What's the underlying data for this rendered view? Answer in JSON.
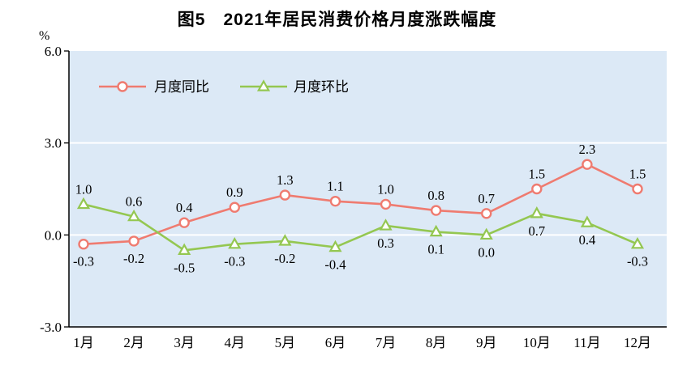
{
  "title": "图5　2021年居民消费价格月度涨跌幅度",
  "chart_data": {
    "type": "line",
    "title": "图5　2021年居民消费价格月度涨跌幅度",
    "ylabel": "%",
    "categories": [
      "1月",
      "2月",
      "3月",
      "4月",
      "5月",
      "6月",
      "7月",
      "8月",
      "9月",
      "10月",
      "11月",
      "12月"
    ],
    "series": [
      {
        "name": "月度同比",
        "marker": "circle",
        "color": "#ef7b70",
        "values": [
          -0.3,
          -0.2,
          0.4,
          0.9,
          1.3,
          1.1,
          1.0,
          0.8,
          0.7,
          1.5,
          2.3,
          1.5
        ]
      },
      {
        "name": "月度环比",
        "marker": "triangle",
        "color": "#94c751",
        "values": [
          1.0,
          0.6,
          -0.5,
          -0.3,
          -0.2,
          -0.4,
          0.3,
          0.1,
          0.0,
          0.7,
          0.4,
          -0.3
        ]
      }
    ],
    "ylim": [
      -3,
      6
    ],
    "yticks": [
      6.0,
      3.0,
      0.0,
      -3.0
    ],
    "grid_values": [
      3.0,
      0.0
    ],
    "grid_color": "#ffffff",
    "plot_bg": "#dce9f6",
    "axis_color": "#000000",
    "legend_position": "top-left-inside"
  }
}
